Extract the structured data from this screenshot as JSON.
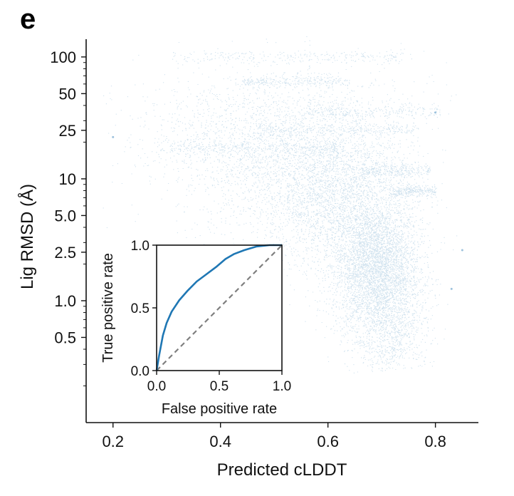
{
  "panel_label": "e",
  "colors": {
    "scatter": "#5b9ac7",
    "roc_line": "#1f77b4",
    "diagonal": "#808080"
  },
  "chart_data": [
    {
      "type": "scatter",
      "xlabel": "Predicted cLDDT",
      "ylabel": "Lig RMSD (Å)",
      "xlim": [
        0.15,
        0.88
      ],
      "ylim": [
        0.1,
        160
      ],
      "yscale": "log",
      "xticks": [
        0.2,
        0.4,
        0.6,
        0.8
      ],
      "xtick_labels": [
        "0.2",
        "0.4",
        "0.6",
        "0.8"
      ],
      "yticks": [
        0.5,
        1.0,
        2.5,
        5.0,
        10,
        25,
        50,
        100
      ],
      "ytick_labels": [
        "0.5",
        "1.0",
        "2.5",
        "5.0",
        "10",
        "25",
        "50",
        "100"
      ],
      "clusters": [
        {
          "x": 0.69,
          "log10_y": 0.25,
          "sx": 0.04,
          "sy": 0.28,
          "count": 4200
        },
        {
          "x": 0.62,
          "log10_y": 0.85,
          "sx": 0.07,
          "sy": 0.32,
          "count": 2600
        },
        {
          "x": 0.52,
          "log10_y": 1.05,
          "sx": 0.1,
          "sy": 0.3,
          "count": 1500
        },
        {
          "x": 0.45,
          "log10_y": 1.35,
          "sx": 0.12,
          "sy": 0.22,
          "count": 900
        },
        {
          "x": 0.72,
          "log10_y": -0.3,
          "sx": 0.035,
          "sy": 0.2,
          "count": 700
        },
        {
          "x": 0.55,
          "log10_y": 1.6,
          "sx": 0.14,
          "sy": 0.25,
          "count": 500
        }
      ],
      "streaks": [
        {
          "x0": 0.31,
          "x1": 0.74,
          "y": 2.0
        },
        {
          "x0": 0.44,
          "x1": 0.64,
          "y": 1.8
        },
        {
          "x0": 0.55,
          "x1": 0.81,
          "y": 1.55
        },
        {
          "x0": 0.47,
          "x1": 0.77,
          "y": 1.4
        },
        {
          "x0": 0.3,
          "x1": 0.62,
          "y": 1.25
        },
        {
          "x0": 0.66,
          "x1": 0.79,
          "y": 1.07
        },
        {
          "x0": 0.72,
          "x1": 0.8,
          "y": 0.9
        }
      ],
      "outliers": [
        {
          "x": 0.85,
          "y": 2.6
        },
        {
          "x": 0.8,
          "y": 35
        },
        {
          "x": 0.83,
          "y": 1.25
        },
        {
          "x": 0.2,
          "y": 22
        }
      ]
    },
    {
      "type": "line",
      "xlabel": "False positive rate",
      "ylabel": "True positive rate",
      "xlim": [
        0,
        1
      ],
      "ylim": [
        0,
        1
      ],
      "xticks": [
        0.0,
        0.5,
        1.0
      ],
      "xtick_labels": [
        "0.0",
        "0.5",
        "1.0"
      ],
      "yticks": [
        0.0,
        0.5,
        1.0
      ],
      "ytick_labels": [
        "0.0",
        "0.5",
        "1.0"
      ],
      "series": [
        {
          "x": [
            0,
            0.02,
            0.05,
            0.08,
            0.12,
            0.18,
            0.25,
            0.32,
            0.4,
            0.48,
            0.55,
            0.62,
            0.7,
            0.8,
            0.9,
            1.0
          ],
          "y": [
            0,
            0.12,
            0.28,
            0.38,
            0.47,
            0.56,
            0.64,
            0.71,
            0.77,
            0.83,
            0.89,
            0.93,
            0.96,
            0.99,
            1.0,
            1.0
          ]
        },
        {
          "x": [
            0,
            1
          ],
          "y": [
            0,
            1
          ]
        }
      ]
    }
  ]
}
